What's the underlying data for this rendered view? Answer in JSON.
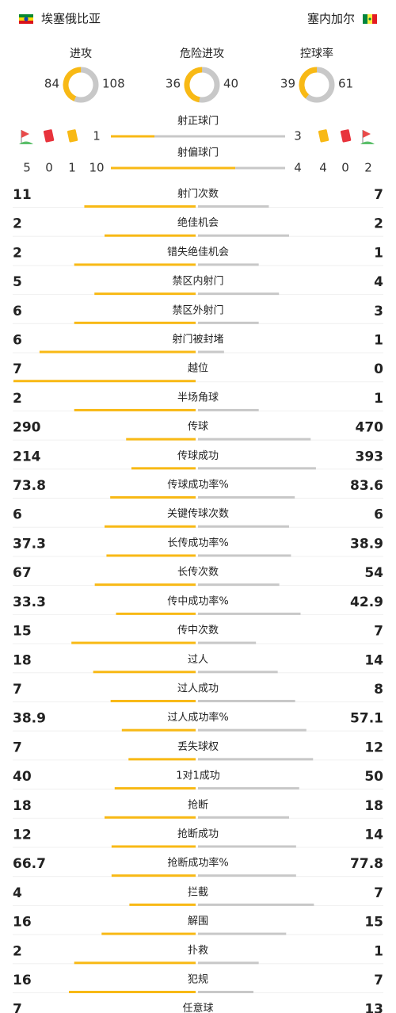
{
  "header": {
    "home_team": "埃塞俄比亚",
    "away_team": "塞内加尔"
  },
  "summary": [
    {
      "label": "进攻",
      "home": 84,
      "away": 108
    },
    {
      "label": "危险进攻",
      "home": 36,
      "away": 40
    },
    {
      "label": "控球率",
      "home": 39,
      "away": 61
    }
  ],
  "cards": {
    "home": {
      "corners": 5,
      "red": 0,
      "yellow": 1
    },
    "away": {
      "yellow": 4,
      "red": 0,
      "corners": 2
    }
  },
  "shots": [
    {
      "label": "射正球门",
      "home": 1,
      "away": 3
    },
    {
      "label": "射偏球门",
      "home": 10,
      "away": 4
    }
  ],
  "stats": [
    {
      "label": "射门次数",
      "home": 11,
      "away": 7
    },
    {
      "label": "绝佳机会",
      "home": 2,
      "away": 2
    },
    {
      "label": "错失绝佳机会",
      "home": 2,
      "away": 1
    },
    {
      "label": "禁区内射门",
      "home": 5,
      "away": 4
    },
    {
      "label": "禁区外射门",
      "home": 6,
      "away": 3
    },
    {
      "label": "射门被封堵",
      "home": 6,
      "away": 1
    },
    {
      "label": "越位",
      "home": 7,
      "away": 0
    },
    {
      "label": "半场角球",
      "home": 2,
      "away": 1
    },
    {
      "label": "传球",
      "home": 290,
      "away": 470
    },
    {
      "label": "传球成功",
      "home": 214,
      "away": 393
    },
    {
      "label": "传球成功率%",
      "home": 73.8,
      "away": 83.6
    },
    {
      "label": "关键传球次数",
      "home": 6,
      "away": 6
    },
    {
      "label": "长传成功率%",
      "home": 37.3,
      "away": 38.9
    },
    {
      "label": "长传次数",
      "home": 67,
      "away": 54
    },
    {
      "label": "传中成功率%",
      "home": 33.3,
      "away": 42.9
    },
    {
      "label": "传中次数",
      "home": 15,
      "away": 7
    },
    {
      "label": "过人",
      "home": 18,
      "away": 14
    },
    {
      "label": "过人成功",
      "home": 7,
      "away": 8
    },
    {
      "label": "过人成功率%",
      "home": 38.9,
      "away": 57.1
    },
    {
      "label": "丢失球权",
      "home": 7,
      "away": 12
    },
    {
      "label": "1对1成功",
      "home": 40,
      "away": 50
    },
    {
      "label": "抢断",
      "home": 18,
      "away": 18
    },
    {
      "label": "抢断成功",
      "home": 12,
      "away": 14
    },
    {
      "label": "抢断成功率%",
      "home": 66.7,
      "away": 77.8
    },
    {
      "label": "拦截",
      "home": 4,
      "away": 7
    },
    {
      "label": "解围",
      "home": 16,
      "away": 15
    },
    {
      "label": "扑救",
      "home": 2,
      "away": 1
    },
    {
      "label": "犯规",
      "home": 16,
      "away": 7
    },
    {
      "label": "任意球",
      "home": 7,
      "away": 13
    }
  ]
}
